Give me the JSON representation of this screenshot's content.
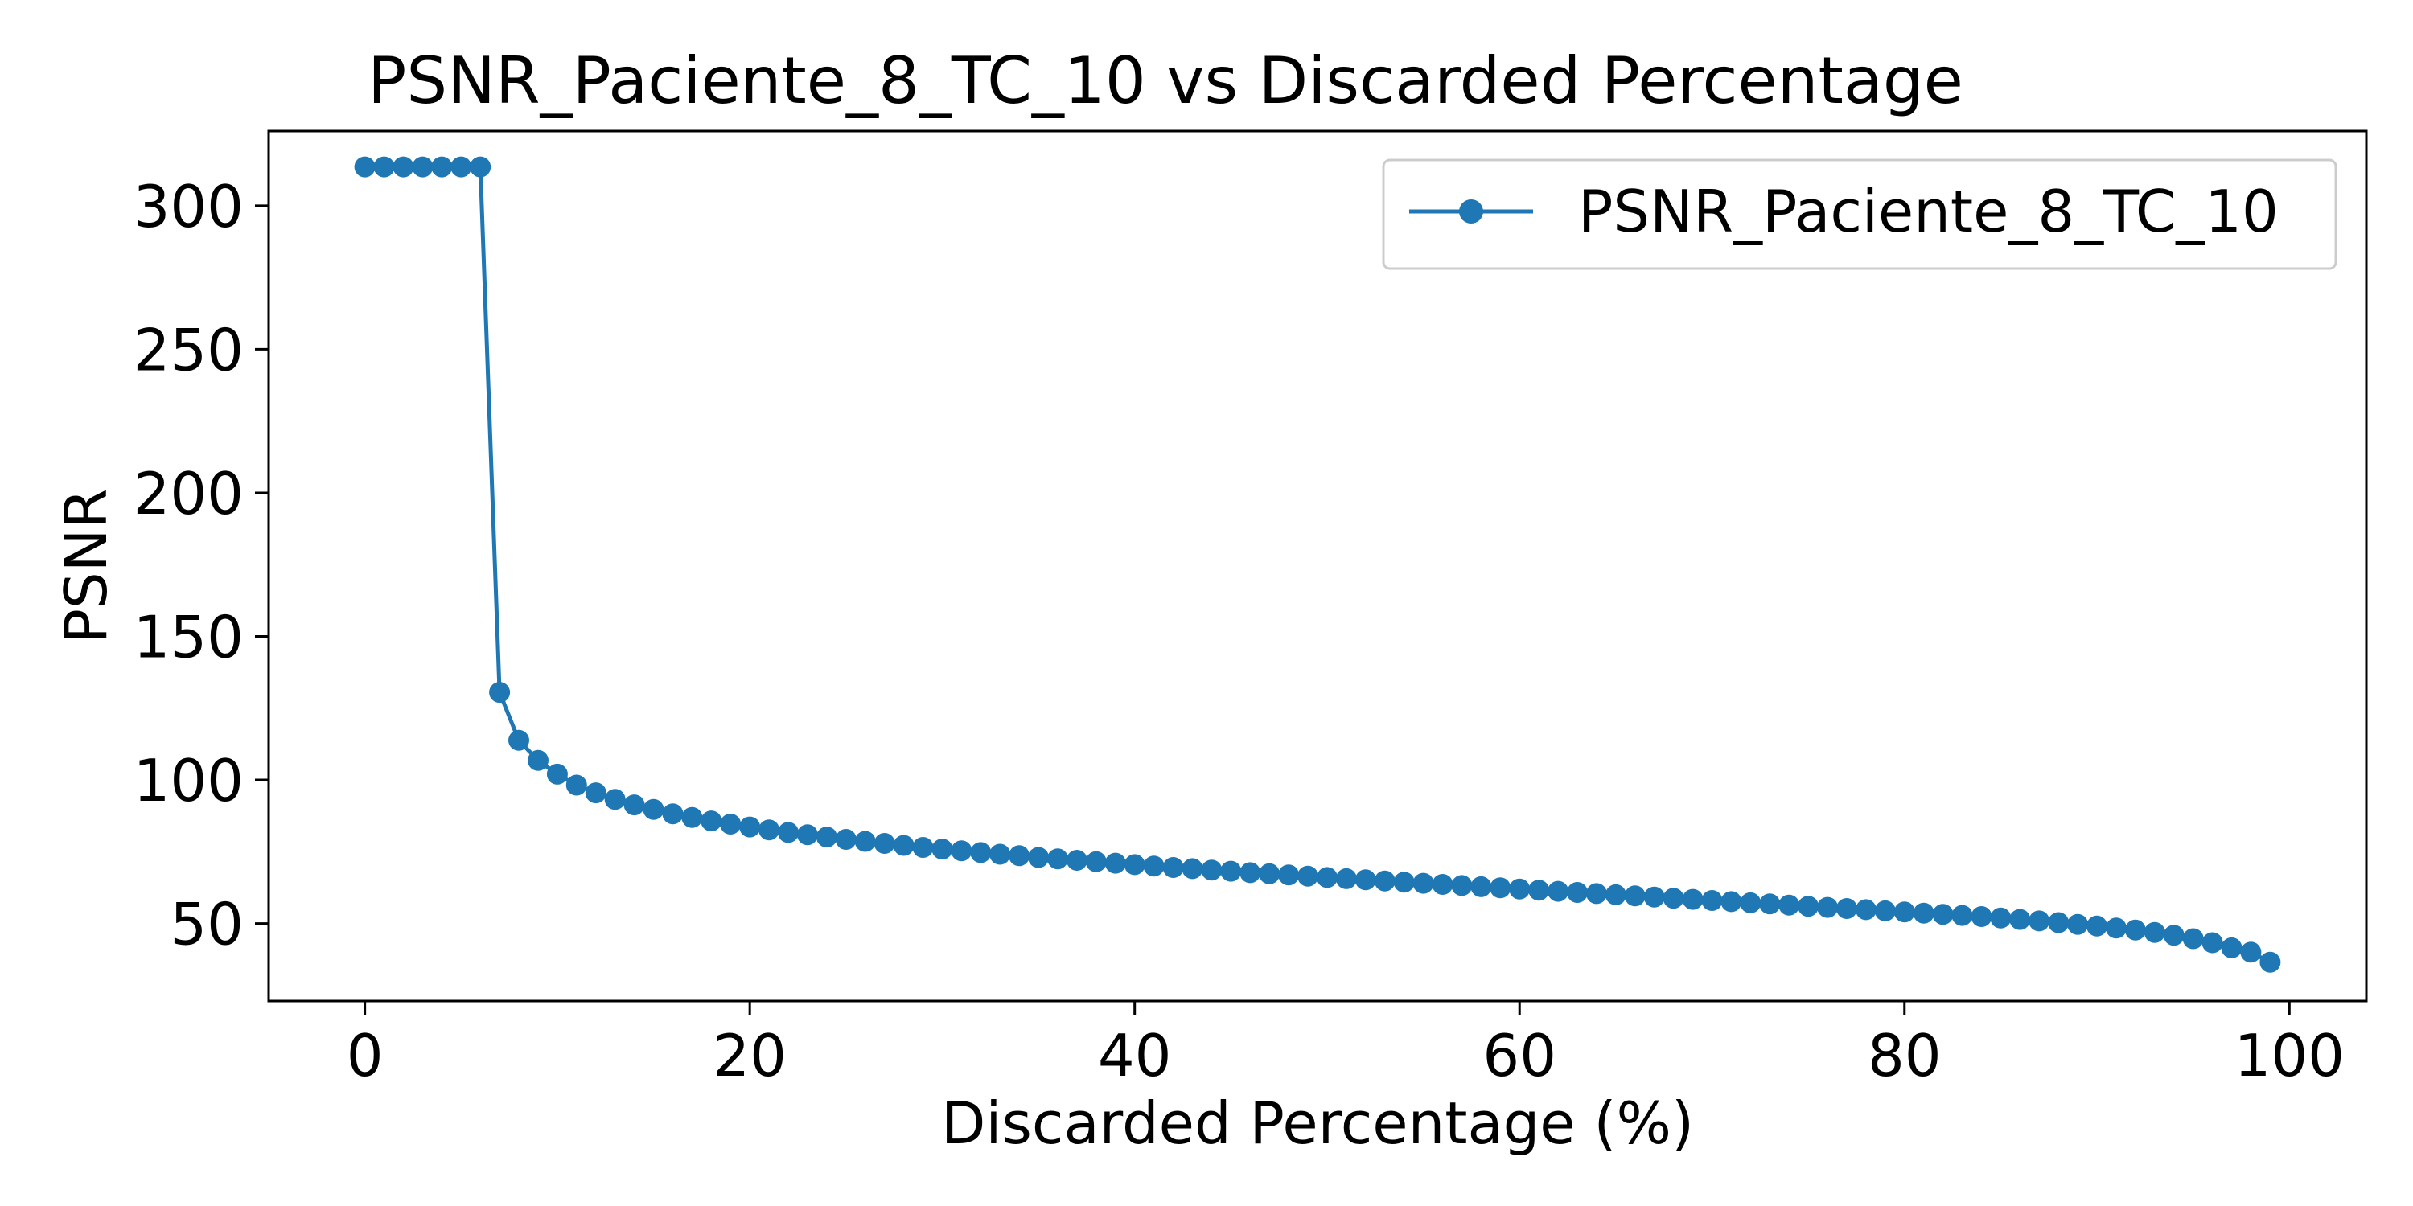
{
  "chart_data": {
    "type": "line",
    "title": "PSNR_Paciente_8_TC_10 vs Discarded Percentage",
    "xlabel": "Discarded Percentage (%)",
    "ylabel": "PSNR",
    "xlim": [
      -5,
      104
    ],
    "ylim": [
      23,
      326
    ],
    "xticks": [
      0,
      20,
      40,
      60,
      80,
      100
    ],
    "yticks": [
      50,
      100,
      150,
      200,
      250,
      300
    ],
    "grid": false,
    "legend_position": "top-right",
    "series": [
      {
        "name": "PSNR_Paciente_8_TC_10",
        "color": "#1f77b4",
        "marker": "circle",
        "x": [
          0,
          1,
          2,
          3,
          4,
          5,
          6,
          7,
          8,
          9,
          10,
          11,
          12,
          13,
          14,
          15,
          16,
          17,
          18,
          19,
          20,
          21,
          22,
          23,
          24,
          25,
          26,
          27,
          28,
          29,
          30,
          31,
          32,
          33,
          34,
          35,
          36,
          37,
          38,
          39,
          40,
          41,
          42,
          43,
          44,
          45,
          46,
          47,
          48,
          49,
          50,
          51,
          52,
          53,
          54,
          55,
          56,
          57,
          58,
          59,
          60,
          61,
          62,
          63,
          64,
          65,
          66,
          67,
          68,
          69,
          70,
          71,
          72,
          73,
          74,
          75,
          76,
          77,
          78,
          79,
          80,
          81,
          82,
          83,
          84,
          85,
          86,
          87,
          88,
          89,
          90,
          91,
          92,
          93,
          94,
          95,
          96,
          97,
          98,
          99
        ],
        "y": [
          313.5,
          313.5,
          313.5,
          313.5,
          313.5,
          313.5,
          313.5,
          130.5,
          113.8,
          106.8,
          102.0,
          98.2,
          95.5,
          93.2,
          91.3,
          89.7,
          88.2,
          86.9,
          85.7,
          84.6,
          83.6,
          82.6,
          81.7,
          80.9,
          80.1,
          79.3,
          78.6,
          77.9,
          77.2,
          76.5,
          75.9,
          75.3,
          74.7,
          74.1,
          73.6,
          73.0,
          72.5,
          72.0,
          71.5,
          71.0,
          70.5,
          70.0,
          69.5,
          69.1,
          68.6,
          68.2,
          67.7,
          67.3,
          66.9,
          66.5,
          66.0,
          65.6,
          65.2,
          64.8,
          64.4,
          64.0,
          63.6,
          63.2,
          62.8,
          62.4,
          62.0,
          61.6,
          61.2,
          60.8,
          60.4,
          60.0,
          59.6,
          59.2,
          58.8,
          58.4,
          58.0,
          57.6,
          57.2,
          56.8,
          56.4,
          56.0,
          55.6,
          55.2,
          54.8,
          54.4,
          54.0,
          53.6,
          53.2,
          52.8,
          52.4,
          51.9,
          51.4,
          50.9,
          50.3,
          49.7,
          49.1,
          48.4,
          47.7,
          46.9,
          45.9,
          44.7,
          43.3,
          41.5,
          40.0,
          36.5
        ]
      }
    ]
  }
}
